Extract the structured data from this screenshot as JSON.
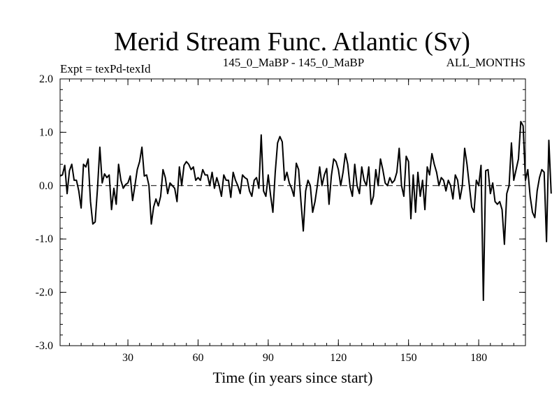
{
  "chart_data": {
    "type": "line",
    "title": "Merid Stream Func. Atlantic (Sv)",
    "subtitle_left": "Expt = texPd-texId",
    "subtitle_center": "145_0_MaBP - 145_0_MaBP",
    "subtitle_right": "ALL_MONTHS",
    "xlabel": "Time (in years since start)",
    "ylabel": "",
    "xlim": [
      1,
      200
    ],
    "ylim": [
      -3.0,
      2.0
    ],
    "xticks": [
      30,
      60,
      90,
      120,
      150,
      180
    ],
    "yticks": [
      -3.0,
      -2.0,
      -1.0,
      0.0,
      1.0,
      2.0
    ],
    "ytick_labels": [
      "-3.0",
      "-2.0",
      "-1.0",
      "0.0",
      "1.0",
      "2.0"
    ],
    "reference_line": 0.0,
    "series": [
      {
        "name": "Merid Stream Func. Atlantic",
        "x_start": 1,
        "x_step": 1,
        "values": [
          0.18,
          0.2,
          0.38,
          -0.15,
          0.28,
          0.4,
          0.1,
          0.1,
          -0.1,
          -0.42,
          0.4,
          0.35,
          0.5,
          -0.3,
          -0.72,
          -0.68,
          -0.05,
          0.72,
          0.05,
          0.22,
          0.15,
          0.2,
          -0.45,
          -0.05,
          -0.35,
          0.4,
          0.1,
          -0.05,
          0.02,
          0.05,
          0.18,
          -0.28,
          0.0,
          0.3,
          0.45,
          0.72,
          0.18,
          0.2,
          0.0,
          -0.72,
          -0.4,
          -0.25,
          -0.38,
          -0.2,
          0.3,
          0.15,
          -0.15,
          0.05,
          0.0,
          -0.05,
          -0.3,
          0.35,
          0.0,
          0.38,
          0.45,
          0.4,
          0.3,
          0.35,
          0.1,
          0.15,
          0.1,
          0.3,
          0.2,
          0.2,
          0.0,
          0.25,
          -0.05,
          0.15,
          0.0,
          -0.2,
          0.2,
          0.1,
          0.1,
          -0.22,
          0.25,
          0.1,
          0.0,
          -0.15,
          0.2,
          0.15,
          0.12,
          -0.1,
          -0.2,
          0.1,
          0.15,
          -0.05,
          0.95,
          -0.1,
          -0.2,
          0.2,
          -0.18,
          -0.5,
          0.25,
          0.8,
          0.92,
          0.82,
          0.1,
          0.25,
          0.05,
          -0.05,
          -0.2,
          0.42,
          0.3,
          -0.3,
          -0.85,
          -0.1,
          0.1,
          0.0,
          -0.5,
          -0.3,
          0.0,
          0.35,
          0.0,
          0.2,
          0.32,
          -0.35,
          0.18,
          0.5,
          0.45,
          0.3,
          0.0,
          0.25,
          0.6,
          0.4,
          -0.02,
          -0.2,
          0.4,
          0.0,
          -0.15,
          0.35,
          0.1,
          0.0,
          0.35,
          -0.35,
          -0.2,
          0.3,
          0.0,
          0.5,
          0.3,
          0.05,
          0.0,
          0.15,
          0.05,
          0.1,
          0.25,
          0.7,
          0.0,
          -0.2,
          0.55,
          0.45,
          -0.62,
          0.2,
          -0.5,
          0.25,
          -0.2,
          0.1,
          -0.45,
          0.35,
          0.2,
          0.6,
          0.4,
          0.25,
          0.0,
          0.15,
          0.1,
          -0.1,
          0.1,
          0.0,
          -0.25,
          0.2,
          0.1,
          -0.25,
          0.0,
          0.7,
          0.4,
          0.0,
          -0.4,
          -0.5,
          0.1,
          0.0,
          0.38,
          -2.15,
          0.28,
          0.3,
          -0.15,
          0.05,
          -0.3,
          -0.35,
          -0.3,
          -0.45,
          -1.1,
          -0.15,
          0.0,
          0.8,
          0.1,
          0.3,
          0.5,
          1.2,
          1.12,
          0.1,
          0.3,
          -0.2,
          -0.5,
          -0.6,
          -0.1,
          0.15,
          0.3,
          0.25,
          -1.05,
          0.85,
          -0.15
        ]
      }
    ]
  }
}
